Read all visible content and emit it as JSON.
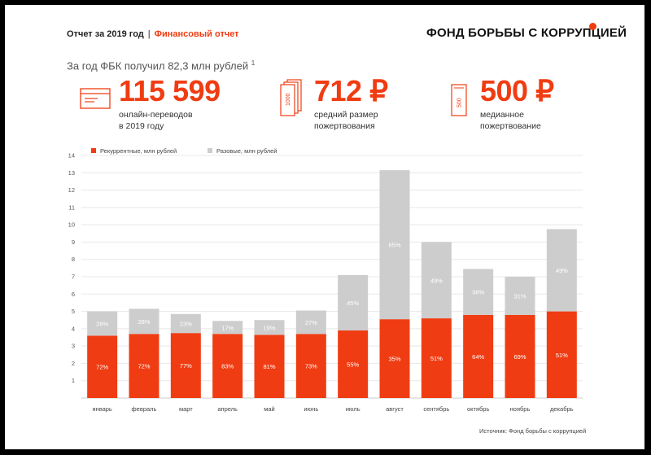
{
  "header": {
    "report": "Отчет за 2019 год",
    "separator": "|",
    "section": "Финансовый отчет",
    "brand": "ФОНД БОРЬБЫ С КОРРУПЦИЕЙ"
  },
  "intro": {
    "text": "За год ФБК получил 82,3 млн рублей",
    "footnote": "1"
  },
  "kpis": [
    {
      "value": "115 599",
      "line1": "онлайн-переводов",
      "line2": "в 2019 году",
      "icon": "payment-card-icon"
    },
    {
      "value": "712 ₽",
      "line1": "средний размер",
      "line2": "пожертвования",
      "icon": "banknotes-1000-icon",
      "icon_text": "1000"
    },
    {
      "value": "500 ₽",
      "line1": "медианное",
      "line2": "пожертвование",
      "icon": "banknote-500-icon",
      "icon_text": "500"
    }
  ],
  "colors": {
    "accent": "#f03c12",
    "recurring": "#f03c12",
    "onetime": "#cdcdcd",
    "grid": "#e8e8e8"
  },
  "chart_data": {
    "type": "bar",
    "stacked": true,
    "categories": [
      "январь",
      "февраль",
      "март",
      "апрель",
      "май",
      "июнь",
      "июль",
      "август",
      "сентябрь",
      "октябрь",
      "ноябрь",
      "декабрь"
    ],
    "series": [
      {
        "name": "Рекуррентные, млн рублей",
        "values": [
          3.6,
          3.7,
          3.75,
          3.7,
          3.65,
          3.7,
          3.9,
          4.55,
          4.6,
          4.8,
          4.8,
          5.0
        ],
        "labels": [
          "72%",
          "72%",
          "77%",
          "83%",
          "81%",
          "73%",
          "55%",
          "35%",
          "51%",
          "64%",
          "69%",
          "51%"
        ]
      },
      {
        "name": "Разовые, млн рублей",
        "values": [
          1.4,
          1.45,
          1.1,
          0.75,
          0.85,
          1.35,
          3.2,
          8.6,
          4.4,
          2.65,
          2.2,
          4.75
        ],
        "labels": [
          "28%",
          "28%",
          "23%",
          "17%",
          "19%",
          "27%",
          "45%",
          "65%",
          "49%",
          "36%",
          "31%",
          "49%"
        ]
      }
    ],
    "ylim": [
      0,
      14
    ],
    "yticks": [
      1,
      2,
      3,
      4,
      5,
      6,
      7,
      8,
      9,
      10,
      11,
      12,
      13,
      14
    ],
    "grid": true,
    "legend": "top-left"
  },
  "source": "Источник: Фонд борьбы с коррупцией"
}
